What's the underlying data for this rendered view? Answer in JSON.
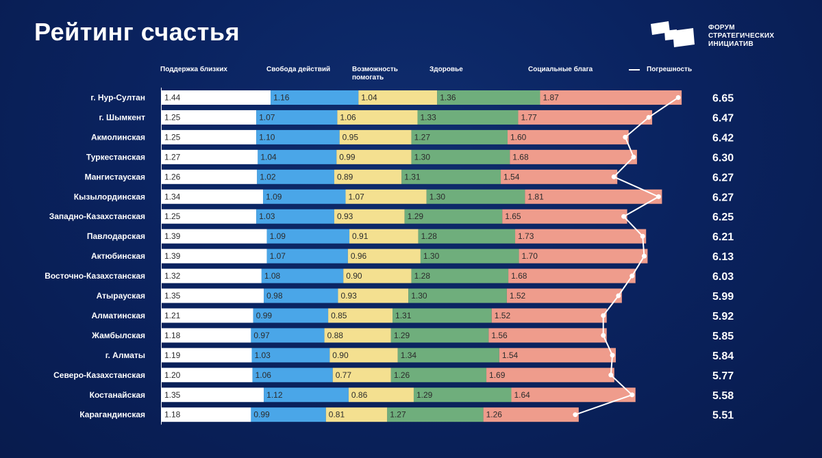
{
  "title": "Рейтинг счастья",
  "logo": {
    "line1": "ФОРУМ",
    "line2": "СТРАТЕГИЧЕСКИХ",
    "line3": "ИНИЦИАТИВ"
  },
  "legend": {
    "support": "Поддержка близких",
    "freedom": "Свобода действий",
    "help": "Возможность помогать",
    "health": "Здоровье",
    "social": "Социальные блага",
    "error": "Погрешность"
  },
  "chart_data": {
    "type": "bar",
    "stacked": true,
    "orientation": "horizontal",
    "title": "Рейтинг счастья",
    "colors": {
      "support": "#ffffff",
      "freedom": "#4aa6e8",
      "help": "#f4e090",
      "health": "#6fae7c",
      "social": "#ef9c8c",
      "error": "#ffffff"
    },
    "categories": [
      "г. Нур-Султан",
      "г. Шымкент",
      "Акмолинская",
      "Туркестанская",
      "Мангистауская",
      "Кызылординская",
      "Западно-Казахстанская",
      "Павлодарская",
      "Актюбинская",
      "Восточно-Казахстанская",
      "Атырауская",
      "Алматинская",
      "Жамбылская",
      "г. Алматы",
      "Северо-Казахстанская",
      "Костанайская",
      "Карагандинская"
    ],
    "series": [
      {
        "name": "Поддержка близких",
        "key": "support",
        "values": [
          "1.44",
          "1.25",
          "1.25",
          "1.27",
          "1.26",
          "1.34",
          "1.25",
          "1.39",
          "1.39",
          "1.32",
          "1.35",
          "1.21",
          "1.18",
          "1.19",
          "1.20",
          "1.35",
          "1.18"
        ]
      },
      {
        "name": "Свобода действий",
        "key": "freedom",
        "values": [
          "1.16",
          "1.07",
          "1.10",
          "1.04",
          "1.02",
          "1.09",
          "1.03",
          "1.09",
          "1.07",
          "1.08",
          "0.98",
          "0.99",
          "0.97",
          "1.03",
          "1.06",
          "1.12",
          "0.99"
        ]
      },
      {
        "name": "Возможность помогать",
        "key": "help",
        "values": [
          "1.04",
          "1.06",
          "0.95",
          "0.99",
          "0.89",
          "1.07",
          "0.93",
          "0.91",
          "0.96",
          "0.90",
          "0.93",
          "0.85",
          "0.88",
          "0.90",
          "0.77",
          "0.86",
          "0.81"
        ]
      },
      {
        "name": "Здоровье",
        "key": "health",
        "values": [
          "1.36",
          "1.33",
          "1.27",
          "1.30",
          "1.31",
          "1.30",
          "1.29",
          "1.28",
          "1.30",
          "1.28",
          "1.30",
          "1.31",
          "1.29",
          "1.34",
          "1.26",
          "1.29",
          "1.27"
        ]
      },
      {
        "name": "Социальные блага",
        "key": "social",
        "values": [
          "1.87",
          "1.77",
          "1.60",
          "1.68",
          "1.54",
          "1.81",
          "1.65",
          "1.73",
          "1.70",
          "1.68",
          "1.52",
          "1.52",
          "1.56",
          "1.54",
          "1.69",
          "1.64",
          "1.26"
        ]
      }
    ],
    "totals": [
      "6.65",
      "6.47",
      "6.42",
      "6.30",
      "6.27",
      "6.27",
      "6.25",
      "6.21",
      "6.13",
      "6.03",
      "5.99",
      "5.92",
      "5.85",
      "5.84",
      "5.77",
      "5.58",
      "5.51"
    ],
    "error_label": "Погрешность"
  }
}
